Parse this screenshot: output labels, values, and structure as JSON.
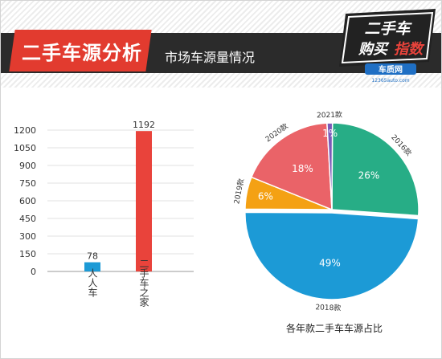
{
  "header": {
    "title": "二手车源分析",
    "subtitle": "市场车源量情况",
    "logo": {
      "line1": "二手车",
      "line2a": "购买",
      "line2b": "指数",
      "site": "车质网",
      "url": "12365auto.com"
    }
  },
  "chart_data": [
    {
      "type": "bar",
      "categories": [
        "人人车",
        "二手车之家"
      ],
      "values": [
        78,
        1192
      ],
      "data_labels": [
        "78",
        "1192"
      ],
      "colors": [
        "#1c9ad6",
        "#e9433b"
      ],
      "yticks": [
        0,
        150,
        300,
        450,
        600,
        750,
        900,
        1050,
        1200
      ],
      "ylim": [
        0,
        1200
      ],
      "grid": true,
      "title": "",
      "xlabel": "",
      "ylabel": ""
    },
    {
      "type": "pie",
      "title": "各年款二手车车源占比",
      "slices": [
        {
          "label": "2016款",
          "value": 26,
          "text": "26%",
          "color": "#27ad86"
        },
        {
          "label": "2018款",
          "value": 49,
          "text": "49%",
          "color": "#1c9ad6"
        },
        {
          "label": "2019款",
          "value": 6,
          "text": "6%",
          "color": "#f4a114"
        },
        {
          "label": "2020款",
          "value": 18,
          "text": "18%",
          "color": "#ea6368"
        },
        {
          "label": "2021款",
          "value": 1,
          "text": "1%",
          "color": "#7b5ab8"
        }
      ]
    }
  ]
}
